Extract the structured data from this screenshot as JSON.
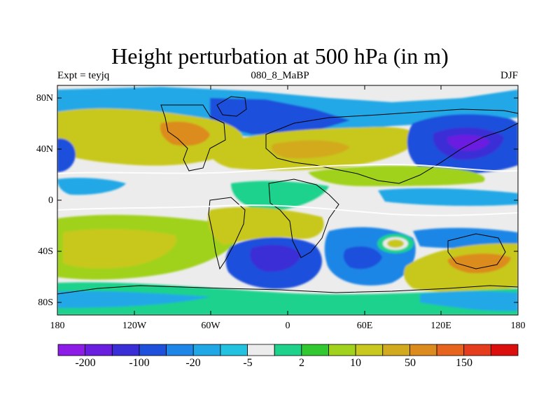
{
  "title": "Height perturbation at 500 hPa (in m)",
  "subtitle_left": "Expt = teyjq",
  "subtitle_center": "080_8_MaBP",
  "subtitle_right": "DJF",
  "lat_labels": [
    "80N",
    "40N",
    "0",
    "40S",
    "80S"
  ],
  "lon_labels": [
    "180",
    "120W",
    "60W",
    "0",
    "60E",
    "120E",
    "180"
  ],
  "colorbar": {
    "labels": [
      "-200",
      "-100",
      "-20",
      "-5",
      "2",
      "10",
      "50",
      "150"
    ],
    "colors": [
      "#8c1ce6",
      "#6a1ee0",
      "#3a2ed6",
      "#1e50dc",
      "#1e86e6",
      "#20a8e6",
      "#22c2e0",
      "#ececec",
      "#1ed28c",
      "#32c832",
      "#a0d21e",
      "#c8c81e",
      "#d2aa1e",
      "#dc8c1e",
      "#e6641e",
      "#e63c1e",
      "#dc0f0f"
    ]
  },
  "colors": {
    "land_outline": "#000000",
    "background": "#ececec"
  }
}
